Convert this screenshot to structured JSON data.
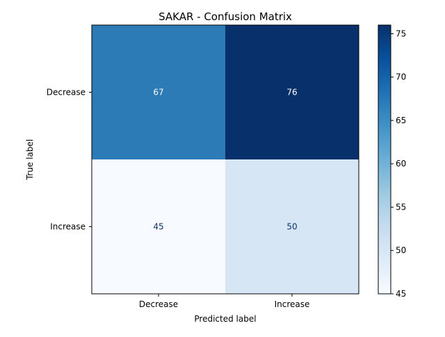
{
  "chart_data": {
    "type": "heatmap",
    "title": "SAKAR - Confusion Matrix",
    "xlabel": "Predicted label",
    "ylabel": "True label",
    "x_categories": [
      "Decrease",
      "Increase"
    ],
    "y_categories": [
      "Decrease",
      "Increase"
    ],
    "values": [
      [
        67,
        76
      ],
      [
        45,
        50
      ]
    ],
    "colormap": "Blues",
    "colorbar": {
      "min": 45,
      "max": 76,
      "ticks": [
        45,
        50,
        55,
        60,
        65,
        70,
        75
      ]
    },
    "colors": {
      "cells": [
        [
          "#2c7bb6",
          "#08306b"
        ],
        [
          "#f7fbff",
          "#d7e6f5"
        ]
      ],
      "cell_text_dark_bg": "#ffffff",
      "cell_text_light_bg": "#08306b"
    }
  }
}
